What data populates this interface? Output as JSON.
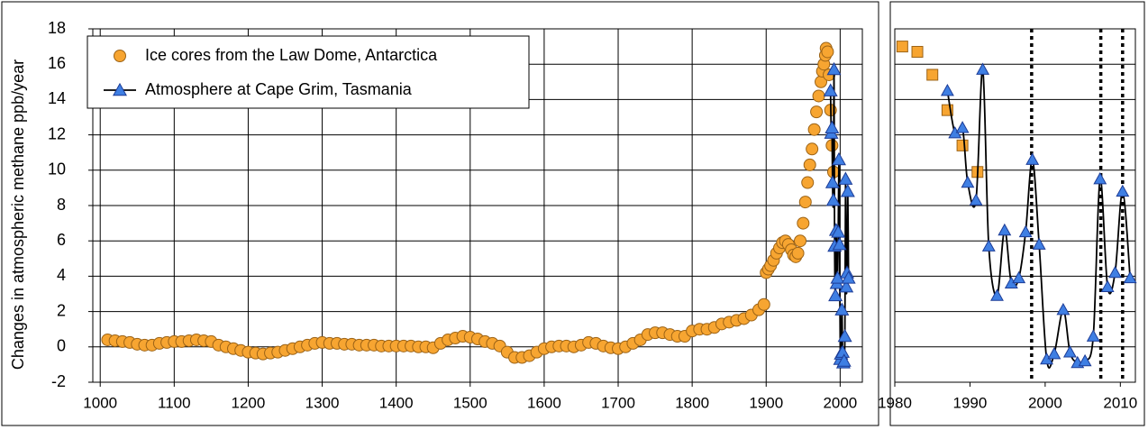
{
  "chart_data": [
    {
      "type": "scatter-line",
      "y_label": "Changes in atmospheric methane ppb/year",
      "xlim": [
        990,
        2030
      ],
      "xticks": [
        1000,
        1100,
        1200,
        1300,
        1400,
        1500,
        1600,
        1700,
        1800,
        1900,
        2000
      ],
      "ylim": [
        -2,
        18
      ],
      "yticks": [
        -2,
        0,
        2,
        4,
        6,
        8,
        10,
        12,
        14,
        16,
        18
      ],
      "grid": true,
      "legend": "upper left",
      "series": [
        {
          "name": "Ice cores from the Law Dome, Antarctica",
          "marker": "circle",
          "line": false,
          "color": "#F7A531",
          "edge": "#9C6316",
          "x": [
            1010,
            1020,
            1030,
            1040,
            1050,
            1060,
            1070,
            1080,
            1090,
            1100,
            1110,
            1120,
            1130,
            1140,
            1150,
            1160,
            1170,
            1180,
            1190,
            1200,
            1210,
            1220,
            1230,
            1240,
            1250,
            1260,
            1270,
            1280,
            1290,
            1300,
            1310,
            1320,
            1330,
            1340,
            1350,
            1360,
            1370,
            1380,
            1390,
            1400,
            1410,
            1420,
            1430,
            1440,
            1450,
            1460,
            1470,
            1480,
            1490,
            1500,
            1510,
            1520,
            1530,
            1540,
            1550,
            1560,
            1570,
            1580,
            1590,
            1600,
            1610,
            1620,
            1630,
            1640,
            1650,
            1660,
            1670,
            1680,
            1690,
            1700,
            1710,
            1720,
            1730,
            1740,
            1750,
            1760,
            1770,
            1780,
            1790,
            1800,
            1810,
            1820,
            1830,
            1840,
            1850,
            1860,
            1870,
            1880,
            1890,
            1897,
            1900,
            1903,
            1906,
            1910,
            1914,
            1918,
            1922,
            1926,
            1930,
            1934,
            1937,
            1940,
            1943,
            1946,
            1950,
            1953,
            1956,
            1959,
            1962,
            1965,
            1968,
            1971,
            1974,
            1976,
            1978,
            1980,
            1981,
            1983,
            1985,
            1987,
            1989,
            1991
          ],
          "values": [
            0.4,
            0.35,
            0.3,
            0.25,
            0.15,
            0.1,
            0.1,
            0.2,
            0.25,
            0.3,
            0.3,
            0.35,
            0.4,
            0.35,
            0.3,
            0.1,
            0,
            -0.1,
            -0.2,
            -0.3,
            -0.35,
            -0.4,
            -0.35,
            -0.3,
            -0.2,
            -0.1,
            0,
            0.1,
            0.2,
            0.25,
            0.2,
            0.2,
            0.15,
            0.15,
            0.1,
            0.1,
            0.1,
            0.05,
            0.05,
            0.05,
            0.05,
            0.05,
            0,
            0,
            -0.05,
            0.2,
            0.4,
            0.5,
            0.6,
            0.55,
            0.45,
            0.3,
            0.2,
            0.05,
            -0.3,
            -0.6,
            -0.6,
            -0.5,
            -0.3,
            -0.1,
            0,
            0.05,
            0.05,
            0,
            0.1,
            0.25,
            0.2,
            0.05,
            -0.05,
            -0.1,
            0,
            0.2,
            0.4,
            0.7,
            0.8,
            0.8,
            0.7,
            0.6,
            0.6,
            0.9,
            1.0,
            1.0,
            1.1,
            1.3,
            1.4,
            1.5,
            1.6,
            1.8,
            2.1,
            2.4,
            4.2,
            4.4,
            4.6,
            4.9,
            5.3,
            5.6,
            5.9,
            6.0,
            5.8,
            5.5,
            5.2,
            5.1,
            5.3,
            6.0,
            7.0,
            8.2,
            9.3,
            10.3,
            11.2,
            12.3,
            13.3,
            14.2,
            15.0,
            15.6,
            16.0,
            16.5,
            16.9,
            16.7,
            15.4,
            13.4,
            11.4,
            9.9
          ]
        },
        {
          "name": "Atmosphere at Cape Grim, Tasmania",
          "marker": "triangle",
          "line": true,
          "color": "#3F7FE3",
          "edge": "#1D3C96",
          "x": [
            1987,
            1988,
            1989,
            1989.7,
            1990.8,
            1991.7,
            1992.5,
            1993.6,
            1994.6,
            1995.5,
            1996.5,
            1997.4,
            1998.3,
            1999.2,
            2000.2,
            2001.2,
            2002.4,
            2003.3,
            2004.3,
            2005.3,
            2006.4,
            2007.3,
            2008.3,
            2009.3,
            2010.3,
            2011.3
          ],
          "values": [
            14.5,
            12.1,
            12.4,
            9.3,
            8.3,
            15.7,
            5.7,
            2.9,
            6.6,
            3.6,
            3.9,
            6.5,
            10.6,
            5.8,
            -0.7,
            -0.4,
            2.1,
            -0.3,
            -0.9,
            -0.8,
            0.6,
            9.5,
            3.4,
            4.2,
            8.8,
            3.9
          ]
        }
      ]
    },
    {
      "type": "scatter-line",
      "xlim": [
        1980,
        2012
      ],
      "xticks": [
        1980,
        1990,
        2000,
        2010
      ],
      "ylim": [
        -2,
        18
      ],
      "yticks": [
        -2,
        0,
        2,
        4,
        6,
        8,
        10,
        12,
        14,
        16,
        18
      ],
      "grid": true,
      "vlines": [
        1998.2,
        2007.4,
        2010.3
      ],
      "series": [
        {
          "marker": "square",
          "line": false,
          "color": "#F7A531",
          "edge": "#9C6316",
          "x": [
            1981,
            1983,
            1985,
            1987,
            1989,
            1991
          ],
          "values": [
            17,
            16.7,
            15.4,
            13.4,
            11.4,
            9.9
          ]
        },
        {
          "marker": "triangle",
          "line": true,
          "color": "#3F7FE3",
          "edge": "#1D3C96",
          "x": [
            1987,
            1988,
            1989,
            1989.7,
            1990.8,
            1991.7,
            1992.5,
            1993.6,
            1994.6,
            1995.5,
            1996.5,
            1997.4,
            1998.3,
            1999.2,
            2000.2,
            2001.2,
            2002.4,
            2003.3,
            2004.3,
            2005.3,
            2006.4,
            2007.3,
            2008.3,
            2009.3,
            2010.3,
            2011.3
          ],
          "values": [
            14.5,
            12.1,
            12.4,
            9.3,
            8.3,
            15.7,
            5.7,
            2.9,
            6.6,
            3.6,
            3.9,
            6.5,
            10.6,
            5.8,
            -0.7,
            -0.4,
            2.1,
            -0.3,
            -0.9,
            -0.8,
            0.6,
            9.5,
            3.4,
            4.2,
            8.8,
            3.9
          ]
        }
      ]
    }
  ]
}
